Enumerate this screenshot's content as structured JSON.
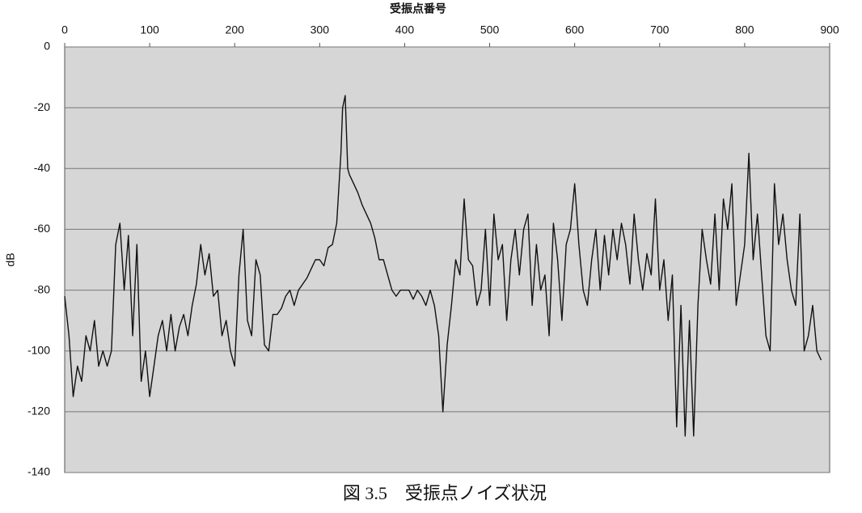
{
  "chart_data": {
    "type": "line",
    "x_label": "受振点番号",
    "y_label": "dB",
    "caption": "図 3.5　受振点ノイズ状況",
    "xlim": [
      0,
      900
    ],
    "xticks": [
      0,
      100,
      200,
      300,
      400,
      500,
      600,
      700,
      800,
      900
    ],
    "ylim": [
      -140,
      0
    ],
    "yticks": [
      0,
      -20,
      -40,
      -60,
      -80,
      -100,
      -120,
      -140
    ],
    "grid": true,
    "series": [
      {
        "color": "#111111",
        "x": [
          0,
          5,
          10,
          15,
          20,
          25,
          30,
          35,
          40,
          45,
          50,
          55,
          60,
          65,
          70,
          75,
          80,
          85,
          90,
          95,
          100,
          105,
          110,
          115,
          120,
          125,
          130,
          135,
          140,
          145,
          150,
          155,
          160,
          165,
          170,
          175,
          180,
          185,
          190,
          195,
          200,
          205,
          210,
          215,
          220,
          225,
          230,
          235,
          240,
          245,
          250,
          255,
          260,
          265,
          270,
          275,
          280,
          285,
          290,
          295,
          300,
          305,
          310,
          315,
          320,
          325,
          327,
          330,
          333,
          335,
          340,
          345,
          350,
          355,
          360,
          365,
          370,
          375,
          380,
          385,
          390,
          395,
          400,
          405,
          410,
          415,
          420,
          425,
          430,
          435,
          440,
          445,
          450,
          455,
          460,
          465,
          470,
          475,
          480,
          485,
          490,
          495,
          500,
          505,
          510,
          515,
          520,
          525,
          530,
          535,
          540,
          545,
          550,
          555,
          560,
          565,
          570,
          575,
          580,
          585,
          590,
          595,
          600,
          605,
          610,
          615,
          620,
          625,
          630,
          635,
          640,
          645,
          650,
          655,
          660,
          665,
          670,
          675,
          680,
          685,
          690,
          695,
          700,
          705,
          710,
          715,
          720,
          725,
          730,
          735,
          740,
          745,
          750,
          755,
          760,
          765,
          770,
          775,
          780,
          785,
          790,
          795,
          800,
          805,
          810,
          815,
          820,
          825,
          830,
          835,
          840,
          845,
          850,
          855,
          860,
          865,
          870,
          875,
          880,
          885,
          890
        ],
        "values": [
          -82,
          -95,
          -115,
          -105,
          -110,
          -95,
          -100,
          -90,
          -105,
          -100,
          -105,
          -100,
          -65,
          -58,
          -80,
          -62,
          -95,
          -65,
          -110,
          -100,
          -115,
          -105,
          -95,
          -90,
          -100,
          -88,
          -100,
          -92,
          -88,
          -95,
          -85,
          -78,
          -65,
          -75,
          -68,
          -82,
          -80,
          -95,
          -90,
          -100,
          -105,
          -75,
          -60,
          -90,
          -95,
          -70,
          -75,
          -98,
          -100,
          -88,
          -88,
          -86,
          -82,
          -80,
          -85,
          -80,
          -78,
          -76,
          -73,
          -70,
          -70,
          -72,
          -66,
          -65,
          -58,
          -35,
          -20,
          -16,
          -40,
          -42,
          -45,
          -48,
          -52,
          -55,
          -58,
          -63,
          -70,
          -70,
          -75,
          -80,
          -82,
          -80,
          -80,
          -80,
          -83,
          -80,
          -82,
          -85,
          -80,
          -85,
          -95,
          -120,
          -98,
          -85,
          -70,
          -75,
          -50,
          -70,
          -72,
          -85,
          -80,
          -60,
          -85,
          -55,
          -70,
          -65,
          -90,
          -70,
          -60,
          -75,
          -60,
          -55,
          -85,
          -65,
          -80,
          -75,
          -95,
          -58,
          -70,
          -90,
          -65,
          -60,
          -45,
          -65,
          -80,
          -85,
          -70,
          -60,
          -80,
          -62,
          -75,
          -60,
          -70,
          -58,
          -65,
          -78,
          -55,
          -70,
          -80,
          -68,
          -75,
          -50,
          -80,
          -70,
          -90,
          -75,
          -125,
          -85,
          -128,
          -90,
          -128,
          -85,
          -60,
          -70,
          -78,
          -55,
          -80,
          -50,
          -60,
          -45,
          -85,
          -75,
          -65,
          -35,
          -70,
          -55,
          -75,
          -95,
          -100,
          -45,
          -65,
          -55,
          -70,
          -80,
          -85,
          -55,
          -100,
          -95,
          -85,
          -100,
          -103
        ]
      }
    ]
  }
}
